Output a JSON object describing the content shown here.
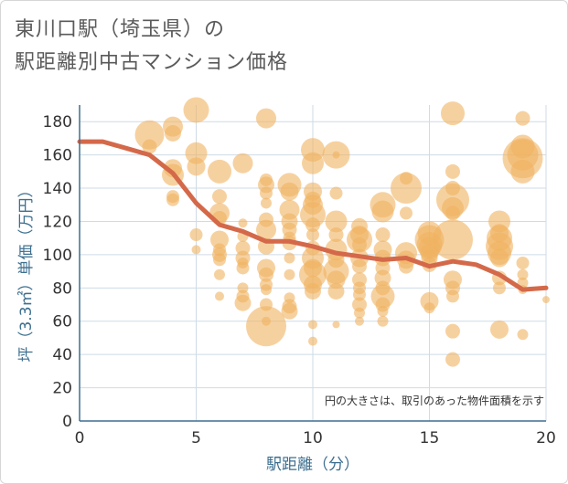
{
  "title_line1": "東川口駅（埼玉県）の",
  "title_line2": "駅距離別中古マンション価格",
  "chart_data": {
    "type": "scatter",
    "xlabel": "駅距離（分）",
    "ylabel": "坪（3.3㎡）単価（万円）",
    "note": "円の大きさは、取引のあった物件面積を示す",
    "xlim": [
      0,
      20
    ],
    "ylim": [
      0,
      190
    ],
    "xticks": [
      "0",
      "5",
      "10",
      "15",
      "20"
    ],
    "yticks": [
      "0",
      "20",
      "40",
      "60",
      "80",
      "100",
      "120",
      "140",
      "160",
      "180"
    ],
    "colors": {
      "bubble": "#f0b260",
      "line": "#d4694a",
      "grid": "#cfdbe6",
      "axis": "#3d6f8f"
    },
    "trend_line": {
      "x": [
        0,
        1,
        2,
        3,
        4,
        5,
        6,
        7,
        8,
        9,
        10,
        11,
        12,
        13,
        14,
        15,
        16,
        17,
        18,
        19,
        20
      ],
      "y": [
        168,
        168,
        164,
        160,
        149,
        131,
        118,
        114,
        108,
        108,
        105,
        101,
        99,
        97,
        98,
        93,
        96,
        94,
        88,
        79,
        80
      ]
    },
    "bubbles": [
      {
        "x": 3,
        "y": 172,
        "r": 16
      },
      {
        "x": 3,
        "y": 165,
        "r": 8
      },
      {
        "x": 4,
        "y": 177,
        "r": 11
      },
      {
        "x": 4,
        "y": 173,
        "r": 9
      },
      {
        "x": 4,
        "y": 152,
        "r": 10
      },
      {
        "x": 4,
        "y": 148,
        "r": 12
      },
      {
        "x": 4,
        "y": 135,
        "r": 7
      },
      {
        "x": 4,
        "y": 133,
        "r": 7
      },
      {
        "x": 5,
        "y": 187,
        "r": 14
      },
      {
        "x": 5,
        "y": 161,
        "r": 12
      },
      {
        "x": 5,
        "y": 153,
        "r": 10
      },
      {
        "x": 5,
        "y": 112,
        "r": 7
      },
      {
        "x": 5,
        "y": 103,
        "r": 5
      },
      {
        "x": 6,
        "y": 150,
        "r": 13
      },
      {
        "x": 6,
        "y": 135,
        "r": 8
      },
      {
        "x": 6,
        "y": 125,
        "r": 11
      },
      {
        "x": 6,
        "y": 122,
        "r": 8
      },
      {
        "x": 6,
        "y": 109,
        "r": 10
      },
      {
        "x": 6,
        "y": 103,
        "r": 7
      },
      {
        "x": 6,
        "y": 100,
        "r": 8
      },
      {
        "x": 6,
        "y": 97,
        "r": 7
      },
      {
        "x": 6,
        "y": 88,
        "r": 6
      },
      {
        "x": 6,
        "y": 75,
        "r": 5
      },
      {
        "x": 7,
        "y": 155,
        "r": 11
      },
      {
        "x": 7,
        "y": 119,
        "r": 5
      },
      {
        "x": 7,
        "y": 111,
        "r": 6
      },
      {
        "x": 7,
        "y": 104,
        "r": 8
      },
      {
        "x": 7,
        "y": 98,
        "r": 8
      },
      {
        "x": 7,
        "y": 95,
        "r": 6
      },
      {
        "x": 7,
        "y": 92,
        "r": 7
      },
      {
        "x": 7,
        "y": 80,
        "r": 6
      },
      {
        "x": 7,
        "y": 75,
        "r": 7
      },
      {
        "x": 7,
        "y": 71,
        "r": 9
      },
      {
        "x": 8,
        "y": 182,
        "r": 11
      },
      {
        "x": 8,
        "y": 145,
        "r": 7
      },
      {
        "x": 8,
        "y": 142,
        "r": 9
      },
      {
        "x": 8,
        "y": 137,
        "r": 7
      },
      {
        "x": 8,
        "y": 131,
        "r": 6
      },
      {
        "x": 8,
        "y": 121,
        "r": 8
      },
      {
        "x": 8,
        "y": 115,
        "r": 11
      },
      {
        "x": 8,
        "y": 105,
        "r": 9
      },
      {
        "x": 8,
        "y": 92,
        "r": 10
      },
      {
        "x": 8,
        "y": 88,
        "r": 8
      },
      {
        "x": 8,
        "y": 82,
        "r": 7
      },
      {
        "x": 8,
        "y": 79,
        "r": 6
      },
      {
        "x": 8,
        "y": 70,
        "r": 7
      },
      {
        "x": 8,
        "y": 57,
        "r": 22
      },
      {
        "x": 8,
        "y": 60,
        "r": 5
      },
      {
        "x": 9,
        "y": 142,
        "r": 13
      },
      {
        "x": 9,
        "y": 138,
        "r": 10
      },
      {
        "x": 9,
        "y": 127,
        "r": 11
      },
      {
        "x": 9,
        "y": 120,
        "r": 9
      },
      {
        "x": 9,
        "y": 115,
        "r": 8
      },
      {
        "x": 9,
        "y": 110,
        "r": 7
      },
      {
        "x": 9,
        "y": 107,
        "r": 8
      },
      {
        "x": 9,
        "y": 98,
        "r": 6
      },
      {
        "x": 9,
        "y": 88,
        "r": 6
      },
      {
        "x": 9,
        "y": 74,
        "r": 6
      },
      {
        "x": 9,
        "y": 69,
        "r": 8
      },
      {
        "x": 9,
        "y": 66,
        "r": 9
      },
      {
        "x": 10,
        "y": 163,
        "r": 13
      },
      {
        "x": 10,
        "y": 155,
        "r": 12
      },
      {
        "x": 10,
        "y": 138,
        "r": 10
      },
      {
        "x": 10,
        "y": 133,
        "r": 9
      },
      {
        "x": 10,
        "y": 130,
        "r": 11
      },
      {
        "x": 10,
        "y": 124,
        "r": 14
      },
      {
        "x": 10,
        "y": 118,
        "r": 8
      },
      {
        "x": 10,
        "y": 112,
        "r": 7
      },
      {
        "x": 10,
        "y": 104,
        "r": 8
      },
      {
        "x": 10,
        "y": 98,
        "r": 12
      },
      {
        "x": 10,
        "y": 92,
        "r": 10
      },
      {
        "x": 10,
        "y": 88,
        "r": 15
      },
      {
        "x": 10,
        "y": 82,
        "r": 10
      },
      {
        "x": 10,
        "y": 78,
        "r": 9
      },
      {
        "x": 10,
        "y": 58,
        "r": 5
      },
      {
        "x": 10,
        "y": 48,
        "r": 5
      },
      {
        "x": 11,
        "y": 160,
        "r": 15
      },
      {
        "x": 11,
        "y": 160,
        "r": 4
      },
      {
        "x": 11,
        "y": 137,
        "r": 7
      },
      {
        "x": 11,
        "y": 120,
        "r": 12
      },
      {
        "x": 11,
        "y": 112,
        "r": 8
      },
      {
        "x": 11,
        "y": 103,
        "r": 12
      },
      {
        "x": 11,
        "y": 97,
        "r": 9
      },
      {
        "x": 11,
        "y": 90,
        "r": 14
      },
      {
        "x": 11,
        "y": 85,
        "r": 10
      },
      {
        "x": 11,
        "y": 78,
        "r": 9
      },
      {
        "x": 11,
        "y": 58,
        "r": 4
      },
      {
        "x": 12,
        "y": 117,
        "r": 9
      },
      {
        "x": 12,
        "y": 112,
        "r": 10
      },
      {
        "x": 12,
        "y": 109,
        "r": 14
      },
      {
        "x": 12,
        "y": 106,
        "r": 8
      },
      {
        "x": 12,
        "y": 98,
        "r": 10
      },
      {
        "x": 12,
        "y": 93,
        "r": 8
      },
      {
        "x": 12,
        "y": 85,
        "r": 8
      },
      {
        "x": 12,
        "y": 80,
        "r": 7
      },
      {
        "x": 12,
        "y": 76,
        "r": 7
      },
      {
        "x": 12,
        "y": 70,
        "r": 8
      },
      {
        "x": 12,
        "y": 65,
        "r": 6
      },
      {
        "x": 12,
        "y": 60,
        "r": 5
      },
      {
        "x": 13,
        "y": 130,
        "r": 14
      },
      {
        "x": 13,
        "y": 126,
        "r": 12
      },
      {
        "x": 13,
        "y": 112,
        "r": 8
      },
      {
        "x": 13,
        "y": 103,
        "r": 10
      },
      {
        "x": 13,
        "y": 98,
        "r": 9
      },
      {
        "x": 13,
        "y": 92,
        "r": 8
      },
      {
        "x": 13,
        "y": 86,
        "r": 9
      },
      {
        "x": 13,
        "y": 80,
        "r": 8
      },
      {
        "x": 13,
        "y": 75,
        "r": 13
      },
      {
        "x": 13,
        "y": 70,
        "r": 8
      },
      {
        "x": 13,
        "y": 66,
        "r": 6
      },
      {
        "x": 13,
        "y": 60,
        "r": 6
      },
      {
        "x": 14,
        "y": 146,
        "r": 7
      },
      {
        "x": 14,
        "y": 140,
        "r": 17
      },
      {
        "x": 14,
        "y": 125,
        "r": 7
      },
      {
        "x": 14,
        "y": 101,
        "r": 12
      },
      {
        "x": 14,
        "y": 97,
        "r": 10
      },
      {
        "x": 14,
        "y": 93,
        "r": 8
      },
      {
        "x": 15,
        "y": 113,
        "r": 13
      },
      {
        "x": 15,
        "y": 109,
        "r": 16
      },
      {
        "x": 15,
        "y": 106,
        "r": 14
      },
      {
        "x": 15,
        "y": 104,
        "r": 12
      },
      {
        "x": 15,
        "y": 101,
        "r": 10
      },
      {
        "x": 15,
        "y": 98,
        "r": 9
      },
      {
        "x": 15,
        "y": 94,
        "r": 8
      },
      {
        "x": 15,
        "y": 72,
        "r": 10
      },
      {
        "x": 15,
        "y": 68,
        "r": 6
      },
      {
        "x": 16,
        "y": 185,
        "r": 13
      },
      {
        "x": 16,
        "y": 150,
        "r": 8
      },
      {
        "x": 16,
        "y": 140,
        "r": 8
      },
      {
        "x": 16,
        "y": 133,
        "r": 18
      },
      {
        "x": 16,
        "y": 128,
        "r": 12
      },
      {
        "x": 16,
        "y": 125,
        "r": 8
      },
      {
        "x": 16,
        "y": 109,
        "r": 22
      },
      {
        "x": 16,
        "y": 85,
        "r": 10
      },
      {
        "x": 16,
        "y": 80,
        "r": 8
      },
      {
        "x": 16,
        "y": 75,
        "r": 7
      },
      {
        "x": 16,
        "y": 54,
        "r": 8
      },
      {
        "x": 16,
        "y": 37,
        "r": 8
      },
      {
        "x": 18,
        "y": 120,
        "r": 12
      },
      {
        "x": 18,
        "y": 113,
        "r": 10
      },
      {
        "x": 18,
        "y": 110,
        "r": 14
      },
      {
        "x": 18,
        "y": 105,
        "r": 15
      },
      {
        "x": 18,
        "y": 101,
        "r": 13
      },
      {
        "x": 18,
        "y": 98,
        "r": 10
      },
      {
        "x": 18,
        "y": 86,
        "r": 8
      },
      {
        "x": 18,
        "y": 80,
        "r": 7
      },
      {
        "x": 18,
        "y": 55,
        "r": 10
      },
      {
        "x": 19,
        "y": 182,
        "r": 8
      },
      {
        "x": 19,
        "y": 165,
        "r": 13
      },
      {
        "x": 19,
        "y": 160,
        "r": 17
      },
      {
        "x": 19,
        "y": 158,
        "r": 22
      },
      {
        "x": 19,
        "y": 150,
        "r": 13
      },
      {
        "x": 19,
        "y": 95,
        "r": 7
      },
      {
        "x": 19,
        "y": 88,
        "r": 6
      },
      {
        "x": 19,
        "y": 83,
        "r": 6
      },
      {
        "x": 19,
        "y": 79,
        "r": 5
      },
      {
        "x": 19,
        "y": 52,
        "r": 6
      },
      {
        "x": 20,
        "y": 73,
        "r": 4
      }
    ]
  }
}
